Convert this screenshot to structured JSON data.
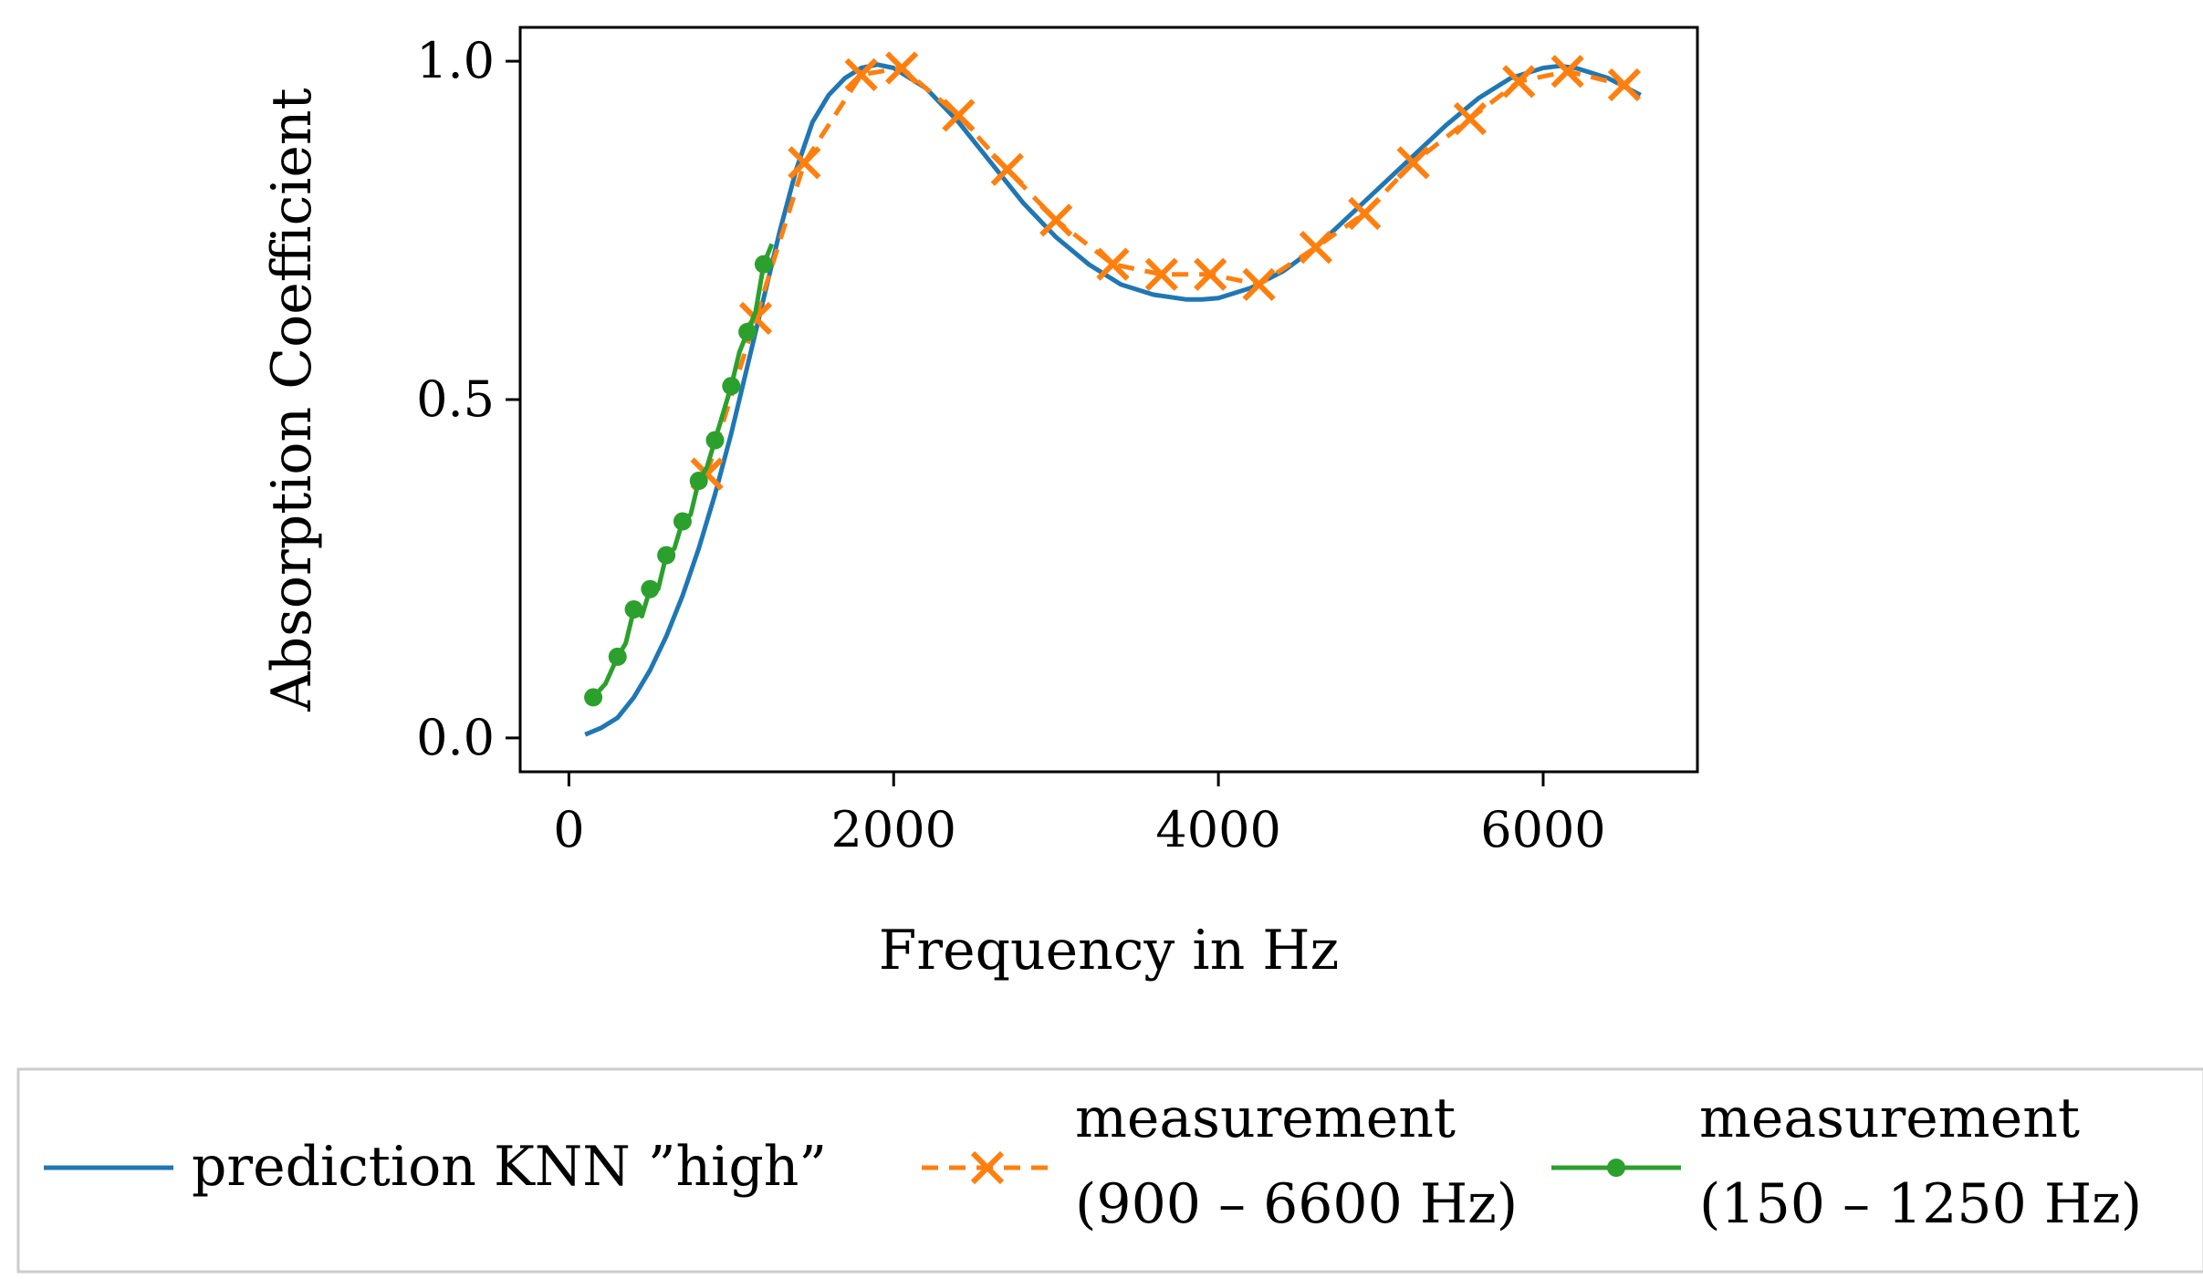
{
  "chart_data": {
    "type": "line",
    "xlabel": "Frequency in Hz",
    "ylabel": "Absorption Coefficient",
    "xlim": [
      -300,
      6950
    ],
    "ylim": [
      -0.05,
      1.05
    ],
    "xticks": [
      0,
      2000,
      4000,
      6000
    ],
    "xtick_labels": [
      "0",
      "2000",
      "4000",
      "6000"
    ],
    "yticks": [
      0.0,
      0.5,
      1.0
    ],
    "ytick_labels": [
      "0.0",
      "0.5",
      "1.0"
    ],
    "grid": false,
    "legend_position": "below",
    "colors": {
      "prediction": "#1f77b4",
      "measurement_high": "#ff7f0e",
      "measurement_low": "#2ca02c"
    },
    "series": [
      {
        "name": "prediction KNN ”high”",
        "style": "solid",
        "x": [
          100,
          200,
          300,
          400,
          500,
          600,
          700,
          800,
          900,
          1000,
          1100,
          1200,
          1300,
          1400,
          1500,
          1600,
          1700,
          1800,
          1900,
          2000,
          2200,
          2400,
          2600,
          2800,
          3000,
          3200,
          3400,
          3600,
          3800,
          3900,
          4000,
          4200,
          4400,
          4600,
          4800,
          5000,
          5200,
          5400,
          5600,
          5800,
          6000,
          6100,
          6200,
          6400,
          6600
        ],
        "y": [
          0.005,
          0.015,
          0.03,
          0.06,
          0.1,
          0.15,
          0.21,
          0.28,
          0.36,
          0.45,
          0.55,
          0.65,
          0.75,
          0.84,
          0.91,
          0.95,
          0.975,
          0.99,
          0.995,
          0.99,
          0.96,
          0.91,
          0.85,
          0.79,
          0.74,
          0.7,
          0.67,
          0.655,
          0.648,
          0.648,
          0.65,
          0.665,
          0.69,
          0.725,
          0.77,
          0.815,
          0.86,
          0.905,
          0.945,
          0.975,
          0.99,
          0.993,
          0.99,
          0.975,
          0.95
        ]
      },
      {
        "name": "measurement (900 – 6600 Hz)",
        "style": "dashed",
        "marker": "x",
        "x": [
          850,
          1150,
          1450,
          1800,
          2050,
          2400,
          2700,
          3000,
          3350,
          3650,
          3950,
          4250,
          4600,
          4900,
          5200,
          5550,
          5850,
          6150,
          6500
        ],
        "y": [
          0.39,
          0.62,
          0.85,
          0.98,
          0.99,
          0.92,
          0.84,
          0.765,
          0.7,
          0.685,
          0.685,
          0.67,
          0.725,
          0.775,
          0.85,
          0.915,
          0.97,
          0.985,
          0.965
        ]
      },
      {
        "name": "measurement (150 – 1250 Hz)",
        "style": "solid",
        "marker": "dot",
        "x": [
          150,
          225,
          300,
          350,
          400,
          450,
          500,
          550,
          600,
          650,
          700,
          750,
          800,
          850,
          900,
          950,
          1000,
          1050,
          1100,
          1150,
          1200,
          1250
        ],
        "y": [
          0.06,
          0.08,
          0.12,
          0.14,
          0.19,
          0.18,
          0.22,
          0.22,
          0.27,
          0.28,
          0.32,
          0.33,
          0.38,
          0.4,
          0.44,
          0.48,
          0.52,
          0.57,
          0.6,
          0.63,
          0.7,
          0.73
        ]
      }
    ],
    "legend": {
      "entries": [
        {
          "lines": [
            "prediction KNN ”high”"
          ]
        },
        {
          "lines": [
            "measurement",
            "(900 – 6600 Hz)"
          ]
        },
        {
          "lines": [
            "measurement",
            "(150 – 1250 Hz)"
          ]
        }
      ]
    }
  }
}
